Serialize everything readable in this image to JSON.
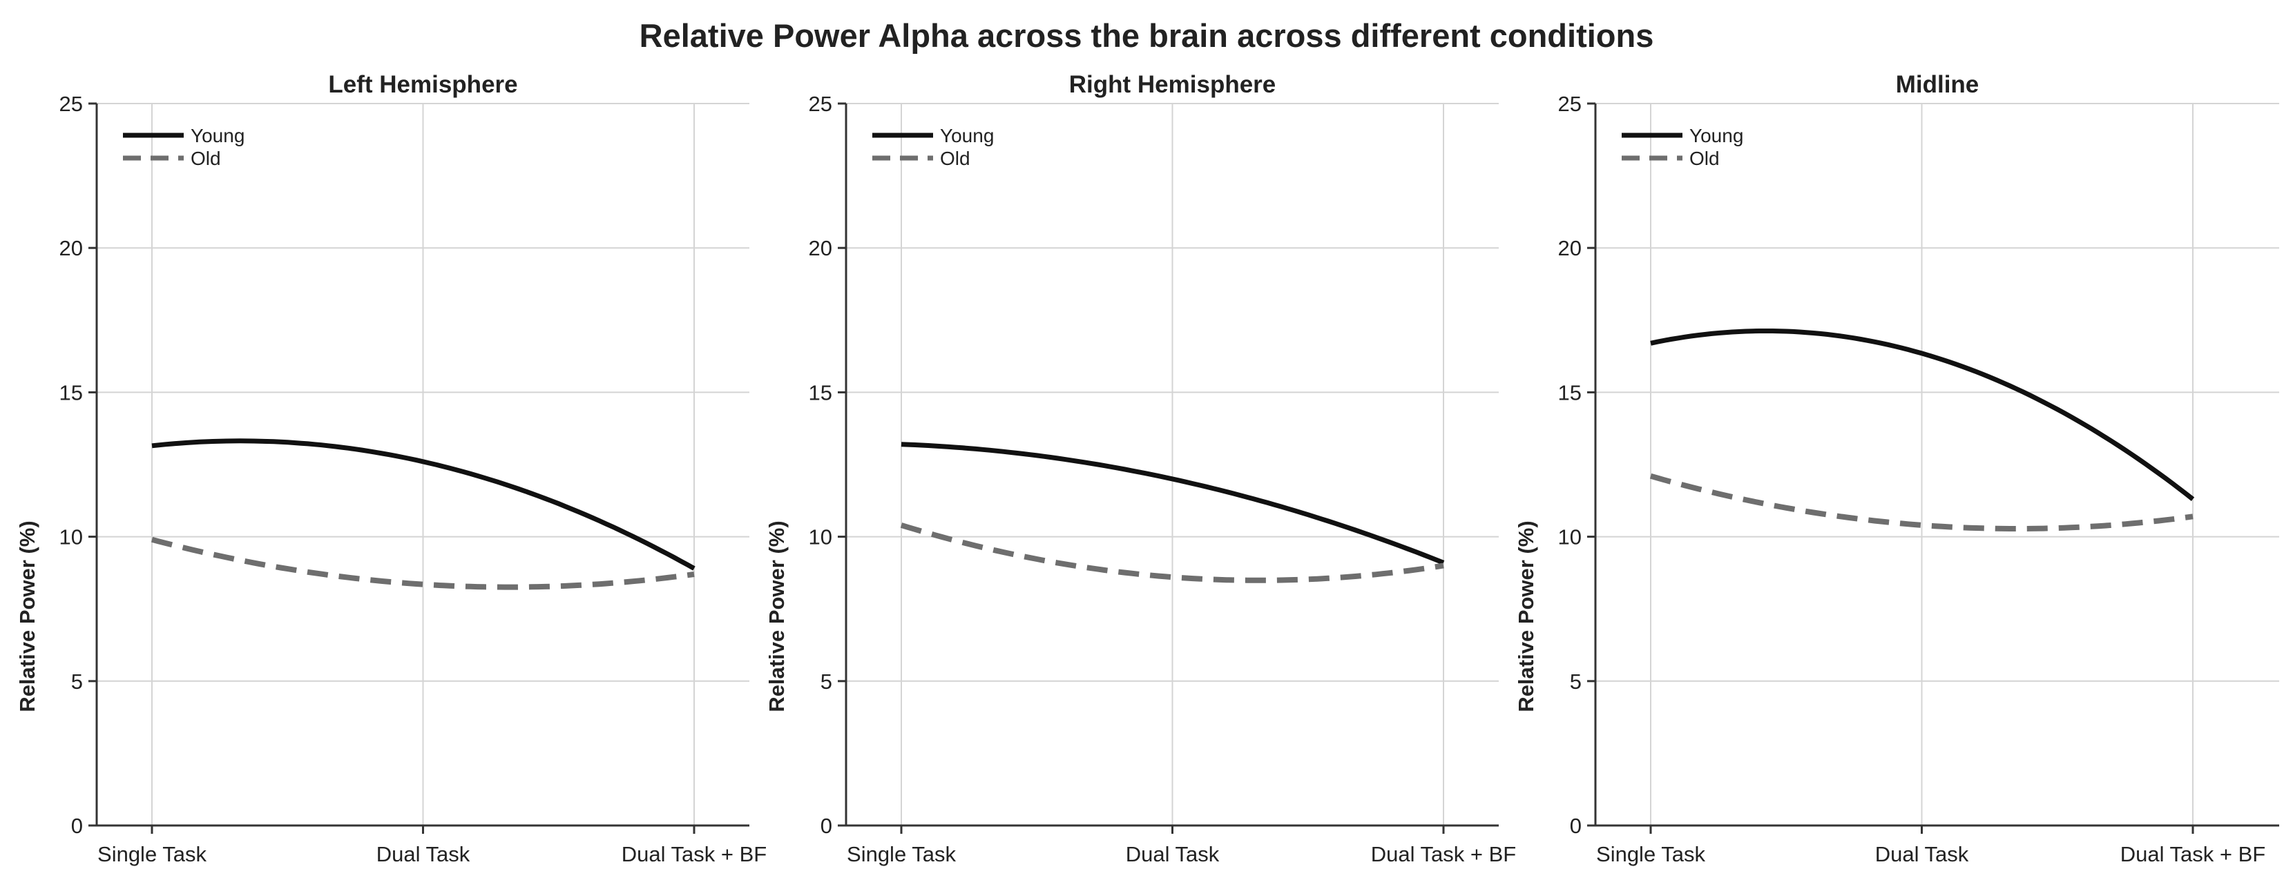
{
  "suptitle": "Relative Power Alpha across the brain across different conditions",
  "colors": {
    "young": "#111111",
    "old": "#6e6e6e",
    "grid": "#d4d4d4",
    "axis": "#333333",
    "text": "#222222"
  },
  "chart_data": [
    {
      "type": "line",
      "title": "Left Hemisphere",
      "xlabel": "",
      "ylabel": "Relative Power (%)",
      "categories": [
        "Single Task",
        "Dual Task",
        "Dual Task + BF"
      ],
      "ylim": [
        0,
        25
      ],
      "yticks": [
        0,
        5,
        10,
        15,
        20,
        25
      ],
      "grid": true,
      "legend": "top-left",
      "series": [
        {
          "name": "Young",
          "style": "solid",
          "values": [
            13.15,
            12.6,
            8.9
          ]
        },
        {
          "name": "Old",
          "style": "dashed",
          "values": [
            9.9,
            8.35,
            8.7
          ]
        }
      ]
    },
    {
      "type": "line",
      "title": "Right Hemisphere",
      "xlabel": "",
      "ylabel": "Relative Power (%)",
      "categories": [
        "Single Task",
        "Dual Task",
        "Dual Task + BF"
      ],
      "ylim": [
        0,
        25
      ],
      "yticks": [
        0,
        5,
        10,
        15,
        20,
        25
      ],
      "grid": true,
      "legend": "top-left",
      "series": [
        {
          "name": "Young",
          "style": "solid",
          "values": [
            13.2,
            12.0,
            9.1
          ]
        },
        {
          "name": "Old",
          "style": "dashed",
          "values": [
            10.4,
            8.6,
            9.0
          ]
        }
      ]
    },
    {
      "type": "line",
      "title": "Midline",
      "xlabel": "",
      "ylabel": "Relative Power (%)",
      "categories": [
        "Single Task",
        "Dual Task",
        "Dual Task + BF"
      ],
      "ylim": [
        0,
        25
      ],
      "yticks": [
        0,
        5,
        10,
        15,
        20,
        25
      ],
      "grid": true,
      "legend": "top-left",
      "series": [
        {
          "name": "Young",
          "style": "solid",
          "values": [
            16.7,
            16.35,
            11.3
          ]
        },
        {
          "name": "Old",
          "style": "dashed",
          "values": [
            12.1,
            10.4,
            10.7
          ]
        }
      ]
    }
  ]
}
